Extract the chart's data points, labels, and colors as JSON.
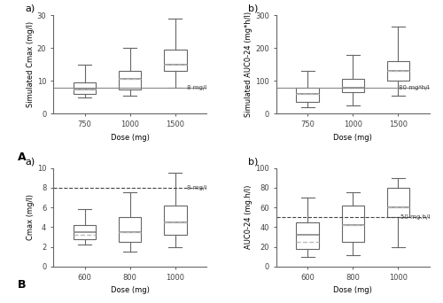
{
  "row_A": {
    "Cmax": {
      "doses": [
        "750",
        "1000",
        "1500"
      ],
      "boxes": [
        {
          "whislo": 5.0,
          "q1": 6.0,
          "med": 7.5,
          "mean": 7.5,
          "q3": 9.5,
          "whishi": 15.0
        },
        {
          "whislo": 5.5,
          "q1": 7.5,
          "med": 10.5,
          "mean": 10.5,
          "q3": 13.0,
          "whishi": 20.0
        },
        {
          "whislo": 8.0,
          "q1": 13.0,
          "med": 15.0,
          "mean": 15.0,
          "q3": 19.5,
          "whishi": 29.0
        }
      ],
      "threshold": 8,
      "threshold_label": "8 mg/l",
      "threshold_style": "solid",
      "ylabel": "Simulated Cmax (mg/l)",
      "xlabel": "Dose (mg)",
      "ylim": [
        0,
        30
      ],
      "yticks": [
        0,
        10,
        20,
        30
      ]
    },
    "AUC": {
      "doses": [
        "750",
        "1000",
        "1500"
      ],
      "boxes": [
        {
          "whislo": 20.0,
          "q1": 35.0,
          "med": 60.0,
          "mean": 60.0,
          "q3": 80.0,
          "whishi": 130.0
        },
        {
          "whislo": 25.0,
          "q1": 65.0,
          "med": 80.0,
          "mean": 80.0,
          "q3": 105.0,
          "whishi": 180.0
        },
        {
          "whislo": 55.0,
          "q1": 100.0,
          "med": 130.0,
          "mean": 130.0,
          "q3": 160.0,
          "whishi": 265.0
        }
      ],
      "threshold": 80,
      "threshold_label": "80 mg*h/l",
      "threshold_style": "solid",
      "ylabel": "Simulated AUC0-24 (mg*h/l)",
      "xlabel": "Dose (mg)",
      "ylim": [
        0,
        300
      ],
      "yticks": [
        0,
        100,
        200,
        300
      ]
    }
  },
  "row_B": {
    "Cmax": {
      "doses": [
        "600",
        "800",
        "1000"
      ],
      "boxes": [
        {
          "whislo": 2.2,
          "q1": 2.8,
          "med": 3.5,
          "mean": 3.2,
          "q3": 4.2,
          "whishi": 5.8
        },
        {
          "whislo": 1.5,
          "q1": 2.5,
          "med": 3.5,
          "mean": 3.5,
          "q3": 5.0,
          "whishi": 7.5
        },
        {
          "whislo": 2.0,
          "q1": 3.2,
          "med": 4.5,
          "mean": 4.5,
          "q3": 6.2,
          "whishi": 9.5
        }
      ],
      "threshold": 8,
      "threshold_label": "8 mg/l",
      "threshold_style": "dashed",
      "ylabel": "Cmax (mg/l)",
      "xlabel": "Dose (mg)",
      "ylim": [
        0,
        10
      ],
      "yticks": [
        0,
        2,
        4,
        6,
        8,
        10
      ]
    },
    "AUC": {
      "doses": [
        "600",
        "800",
        "1000"
      ],
      "boxes": [
        {
          "whislo": 10.0,
          "q1": 18.0,
          "med": 32.0,
          "mean": 25.0,
          "q3": 45.0,
          "whishi": 70.0
        },
        {
          "whislo": 12.0,
          "q1": 25.0,
          "med": 42.0,
          "mean": 42.0,
          "q3": 62.0,
          "whishi": 75.0
        },
        {
          "whislo": 20.0,
          "q1": 50.0,
          "med": 60.0,
          "mean": 60.0,
          "q3": 80.0,
          "whishi": 90.0
        }
      ],
      "threshold": 50,
      "threshold_label": "50 mg.h/l",
      "threshold_style": "dashed",
      "ylabel": "AUC0-24 (mg.h/l)",
      "xlabel": "Dose (mg)",
      "ylim": [
        0,
        100
      ],
      "yticks": [
        0,
        20,
        40,
        60,
        80,
        100
      ]
    }
  },
  "box_color": "#d3d3d3",
  "median_color": "#888888",
  "mean_color": "#bbbbbb",
  "threshold_color": "#888888",
  "label_fontsize": 6,
  "tick_fontsize": 6,
  "panel_label_fontsize": 8
}
